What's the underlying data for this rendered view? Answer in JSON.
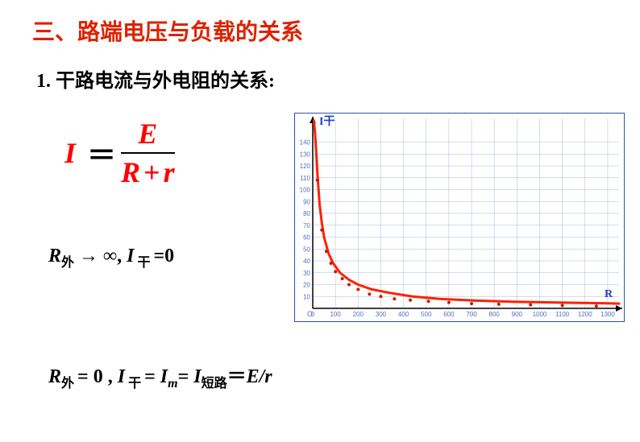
{
  "title_text": "三、路端电压与负载的关系",
  "title_color": "#dd2200",
  "subtitle": "1. 干路电流与外电阻的关系:",
  "formula": {
    "lhs": "I",
    "eq": "＝",
    "num": "E",
    "den_R": "R",
    "den_plus": "+",
    "den_r": "r"
  },
  "condition1": {
    "R_sym": "R",
    "R_sub": "外",
    "arrow": " → ∞,   ",
    "I_sym": "I",
    "I_sub": " 干 ",
    "tail": "=0"
  },
  "condition2": {
    "R_sym": "R",
    "R_sub": "外 ",
    "eq1": "= 0 ,   ",
    "I_sym": "I",
    "I_sub": " 干 ",
    "eq2": "= ",
    "Im_sym": "I",
    "Im_sub": "m",
    "eq3": "= ",
    "Ish_sym": "I",
    "Ish_sub": "短路",
    "eq4": "＝",
    "tail": "E/r"
  },
  "chart": {
    "type": "line",
    "x_label": "R",
    "y_label": "I干",
    "x_label_color": "#2040c0",
    "y_label_color": "#2040c0",
    "xlim": [
      0,
      1350
    ],
    "ylim": [
      0,
      160
    ],
    "xtick_step": 100,
    "ytick_step": 10,
    "xticks": [
      0,
      100,
      200,
      300,
      400,
      500,
      600,
      700,
      800,
      900,
      1000,
      1100,
      1200,
      1300
    ],
    "yticks": [
      10,
      20,
      30,
      40,
      50,
      60,
      70,
      80,
      90,
      100,
      110,
      120,
      130,
      140
    ],
    "grid_color": "#a8b8e0",
    "axis_color": "#000000",
    "background_color": "#ffffff",
    "curve_color": "#ff2000",
    "curve_width": 3,
    "label_fontsize": 8,
    "axis_label_fontsize": 14,
    "marker_color": "#cc1800",
    "marker_size": 2,
    "curve_points_x": [
      5,
      10,
      15,
      20,
      30,
      40,
      50,
      70,
      90,
      120,
      160,
      200,
      260,
      340,
      440,
      560,
      720,
      900,
      1100,
      1300,
      1350
    ],
    "curve_points_y": [
      158,
      148,
      133,
      115,
      88,
      72,
      60,
      46,
      38,
      30,
      24,
      20,
      16,
      13,
      10,
      8,
      6.5,
      5.5,
      4.8,
      4.2,
      4
    ],
    "scatter_x": [
      20,
      40,
      60,
      80,
      100,
      130,
      160,
      200,
      250,
      300,
      360,
      430,
      510,
      600,
      700,
      820,
      960,
      1100,
      1250
    ],
    "scatter_y": [
      110,
      68,
      50,
      40,
      33,
      27,
      22,
      18,
      14,
      12,
      10,
      9,
      8,
      7,
      6,
      5.5,
      5,
      4.5,
      4
    ]
  }
}
